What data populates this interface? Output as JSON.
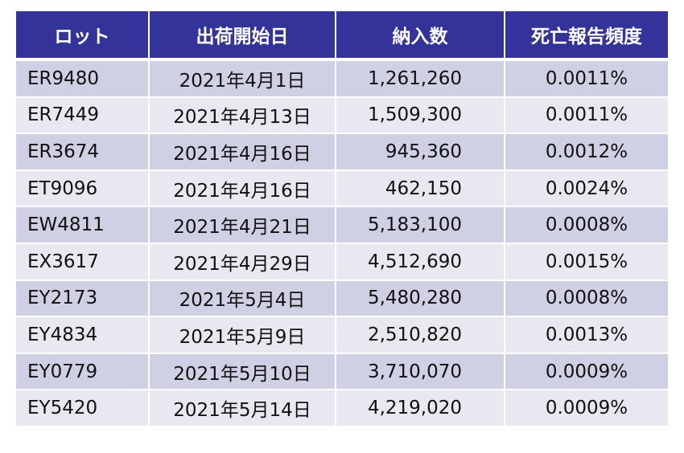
{
  "table": {
    "headers": {
      "lot": "ロット",
      "ship_date": "出荷開始日",
      "quantity": "納入数",
      "death_rate": "死亡報告頻度"
    },
    "rows": [
      {
        "lot": "ER9480",
        "ship_date": "2021年4月1日",
        "quantity": "1,261,260",
        "death_rate": "0.0011%"
      },
      {
        "lot": "ER7449",
        "ship_date": "2021年4月13日",
        "quantity": "1,509,300",
        "death_rate": "0.0011%"
      },
      {
        "lot": "ER3674",
        "ship_date": "2021年4月16日",
        "quantity": "945,360",
        "death_rate": "0.0012%"
      },
      {
        "lot": "ET9096",
        "ship_date": "2021年4月16日",
        "quantity": "462,150",
        "death_rate": "0.0024%"
      },
      {
        "lot": "EW4811",
        "ship_date": "2021年4月21日",
        "quantity": "5,183,100",
        "death_rate": "0.0008%"
      },
      {
        "lot": "EX3617",
        "ship_date": "2021年4月29日",
        "quantity": "4,512,690",
        "death_rate": "0.0015%"
      },
      {
        "lot": "EY2173",
        "ship_date": "2021年5月4日",
        "quantity": "5,480,280",
        "death_rate": "0.0008%"
      },
      {
        "lot": "EY4834",
        "ship_date": "2021年5月9日",
        "quantity": "2,510,820",
        "death_rate": "0.0013%"
      },
      {
        "lot": "EY0779",
        "ship_date": "2021年5月10日",
        "quantity": "3,710,070",
        "death_rate": "0.0009%"
      },
      {
        "lot": "EY5420",
        "ship_date": "2021年5月14日",
        "quantity": "4,219,020",
        "death_rate": "0.0009%"
      }
    ]
  },
  "colors": {
    "header_bg": "#333399",
    "header_text": "#ffffff",
    "row_odd_bg": "#cfd0e3",
    "row_even_bg": "#e8e8f0"
  }
}
